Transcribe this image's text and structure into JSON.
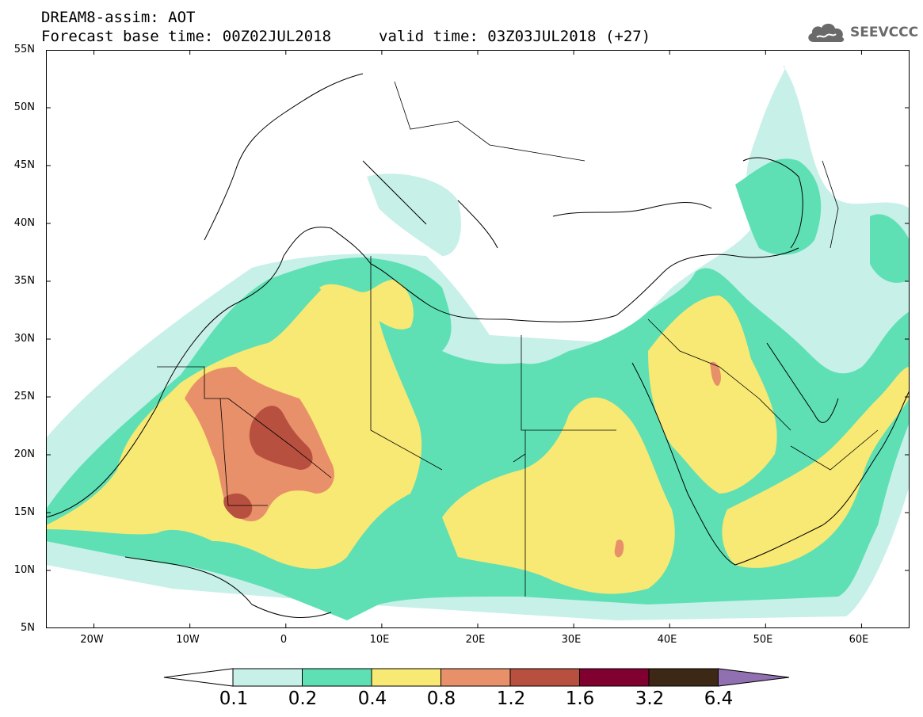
{
  "header": {
    "title_line1": "DREAM8-assim: AOT",
    "title_line2": "Forecast base time: 00Z02JUL2018",
    "valid_time": "valid time: 03Z03JUL2018 (+27)",
    "logo_text": "SEEVCCC",
    "logo_icon": "cloud-icon"
  },
  "map": {
    "lat_labels": [
      "55N",
      "50N",
      "45N",
      "40N",
      "35N",
      "30N",
      "25N",
      "20N",
      "15N",
      "10N",
      "5N"
    ],
    "lon_labels": [
      "20W",
      "10W",
      "0",
      "10E",
      "20E",
      "30E",
      "40E",
      "50E",
      "60E"
    ],
    "extent": {
      "lon_min": -25,
      "lon_max": 65,
      "lat_min": 5,
      "lat_max": 55
    }
  },
  "legend": {
    "thresholds": [
      "0.1",
      "0.2",
      "0.4",
      "0.8",
      "1.2",
      "1.6",
      "3.2",
      "6.4"
    ],
    "colors": [
      "#ffffff",
      "#c6f0e8",
      "#5ee0b4",
      "#f8e874",
      "#e8906a",
      "#b85040",
      "#800030",
      "#3c2814",
      "#9070b0"
    ]
  }
}
